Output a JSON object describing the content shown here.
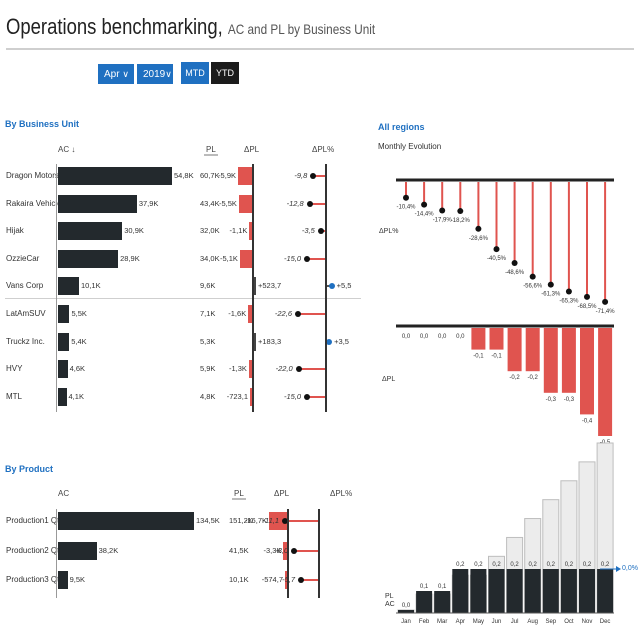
{
  "title": {
    "main": "Operations benchmarking,",
    "sub": "AC and PL by Business Unit"
  },
  "filters": {
    "month": "Apr",
    "year": "2019",
    "mtd": "MTD",
    "ytd": "YTD"
  },
  "business_unit": {
    "section_title": "By Business Unit",
    "headers": {
      "ac": "AC ↓",
      "pl": "PL",
      "dpl": "ΔPL",
      "dplp": "ΔPL%"
    },
    "rows": [
      {
        "name": "Dragon Motors",
        "ac": 54.8,
        "ac_label": "54,8K",
        "pl": "60,7K",
        "dpl": -5.9,
        "dpl_label": "-5,9K",
        "dplp": -9.8,
        "dplp_label": "-9,8"
      },
      {
        "name": "Rakaira Vehicles",
        "ac": 37.9,
        "ac_label": "37,9K",
        "pl": "43,4K",
        "dpl": -5.5,
        "dpl_label": "-5,5K",
        "dplp": -12.8,
        "dplp_label": "-12,8"
      },
      {
        "name": "Hijak",
        "ac": 30.9,
        "ac_label": "30,9K",
        "pl": "32,0K",
        "dpl": -1.1,
        "dpl_label": "-1,1K",
        "dplp": -3.5,
        "dplp_label": "-3,5"
      },
      {
        "name": "OzzieCar",
        "ac": 28.9,
        "ac_label": "28,9K",
        "pl": "34,0K",
        "dpl": -5.1,
        "dpl_label": "-5,1K",
        "dplp": -15.0,
        "dplp_label": "-15,0"
      },
      {
        "name": "Vans Corp",
        "ac": 10.1,
        "ac_label": "10,1K",
        "pl": "9,6K",
        "dpl": 0.5237,
        "dpl_label": "+523,7",
        "dplp": 5.5,
        "dplp_label": "+5,5"
      },
      {
        "name": "LatAmSUV",
        "ac": 5.5,
        "ac_label": "5,5K",
        "pl": "7,1K",
        "dpl": -1.6,
        "dpl_label": "-1,6K",
        "dplp": -22.6,
        "dplp_label": "-22,6"
      },
      {
        "name": "Truckz Inc.",
        "ac": 5.4,
        "ac_label": "5,4K",
        "pl": "5,3K",
        "dpl": 0.1833,
        "dpl_label": "+183,3",
        "dplp": 3.5,
        "dplp_label": "+3,5"
      },
      {
        "name": "HVY",
        "ac": 4.6,
        "ac_label": "4,6K",
        "pl": "5,9K",
        "dpl": -1.3,
        "dpl_label": "-1,3K",
        "dplp": -22.0,
        "dplp_label": "-22,0"
      },
      {
        "name": "MTL",
        "ac": 4.1,
        "ac_label": "4,1K",
        "pl": "4,8K",
        "dpl": -0.7231,
        "dpl_label": "-723,1",
        "dplp": -15.0,
        "dplp_label": "-15,0"
      }
    ]
  },
  "product": {
    "section_title": "By Product",
    "headers": {
      "ac": "AC",
      "pl": "PL",
      "dpl": "ΔPL",
      "dplp": "ΔPL%"
    },
    "rows": [
      {
        "name": "Production1 Qty",
        "ac": 134.5,
        "ac_label": "134,5K",
        "pl": "151,2K",
        "dpl": -16.7,
        "dpl_label": "-16,7K",
        "dplp": -11.1,
        "dplp_label": "-11,1"
      },
      {
        "name": "Production2 Qty",
        "ac": 38.2,
        "ac_label": "38,2K",
        "pl": "41,5K",
        "dpl": -3.3,
        "dpl_label": "-3,3K",
        "dplp": -8.0,
        "dplp_label": "-8,0"
      },
      {
        "name": "Production3 Qty",
        "ac": 9.5,
        "ac_label": "9,5K",
        "pl": "10,1K",
        "dpl": -0.5747,
        "dpl_label": "-574,7",
        "dplp": -5.7,
        "dplp_label": "-5,7"
      }
    ]
  },
  "regions": {
    "section_title": "All regions",
    "subtitle": "Monthly Evolution",
    "dplp_axis_label": "ΔPL%",
    "dpl_axis_label": "ΔPL",
    "pl_label": "PL",
    "ac_label": "AC",
    "end_label": "0,0%"
  },
  "chart_data": [
    {
      "type": "bar",
      "title": "Monthly Evolution ΔPL%",
      "categories": [
        "Jan",
        "Feb",
        "Mar",
        "Apr",
        "May",
        "Jun",
        "Jul",
        "Aug",
        "Sep",
        "Oct",
        "Nov",
        "Dec"
      ],
      "values": [
        -10.4,
        -14.4,
        -17.9,
        -18.2,
        -28.6,
        -40.5,
        -48.6,
        -56.6,
        -61.3,
        -65.3,
        -68.5,
        -71.4
      ],
      "labels": [
        "-10,4%",
        "-14,4%",
        "-17,9%",
        "-18,2%",
        "-28,6%",
        "-40,5%",
        "-48,6%",
        "-56,6%",
        "-61,3%",
        "-65,3%",
        "-68,5%",
        "-71,4%"
      ],
      "ylim": [
        -75,
        0
      ]
    },
    {
      "type": "bar",
      "title": "Monthly Evolution ΔPL",
      "categories": [
        "Jan",
        "Feb",
        "Mar",
        "Apr",
        "May",
        "Jun",
        "Jul",
        "Aug",
        "Sep",
        "Oct",
        "Nov",
        "Dec"
      ],
      "values": [
        0.0,
        0.0,
        0.0,
        0.0,
        -0.1,
        -0.1,
        -0.2,
        -0.2,
        -0.3,
        -0.3,
        -0.4,
        -0.5
      ],
      "labels": [
        "0,0",
        "0,0",
        "0,0",
        "0,0",
        "-0,1",
        "-0,1",
        "-0,2",
        "-0,2",
        "-0,3",
        "-0,3",
        "-0,4",
        "-0,5"
      ],
      "ylim": [
        -0.5,
        0
      ]
    },
    {
      "type": "bar",
      "title": "Monthly Evolution AC vs PL",
      "categories": [
        "Jan",
        "Feb",
        "Mar",
        "Apr",
        "May",
        "Jun",
        "Jul",
        "Aug",
        "Sep",
        "Oct",
        "Nov",
        "Dec"
      ],
      "series": [
        {
          "name": "PL",
          "values": [
            0.0,
            0.1,
            0.1,
            0.2,
            0.2,
            0.3,
            0.4,
            0.5,
            0.6,
            0.7,
            0.8,
            0.9
          ]
        },
        {
          "name": "AC",
          "values": [
            0.0,
            0.1,
            0.1,
            0.2,
            0.2,
            0.2,
            0.2,
            0.2,
            0.2,
            0.2,
            0.2,
            0.2
          ]
        }
      ],
      "ac_labels": [
        "0,0",
        "0,1",
        "0,1",
        "0,2",
        "0,2",
        "0,2",
        "0,2",
        "0,2",
        "0,2",
        "0,2",
        "0,2",
        "0,2"
      ]
    }
  ]
}
